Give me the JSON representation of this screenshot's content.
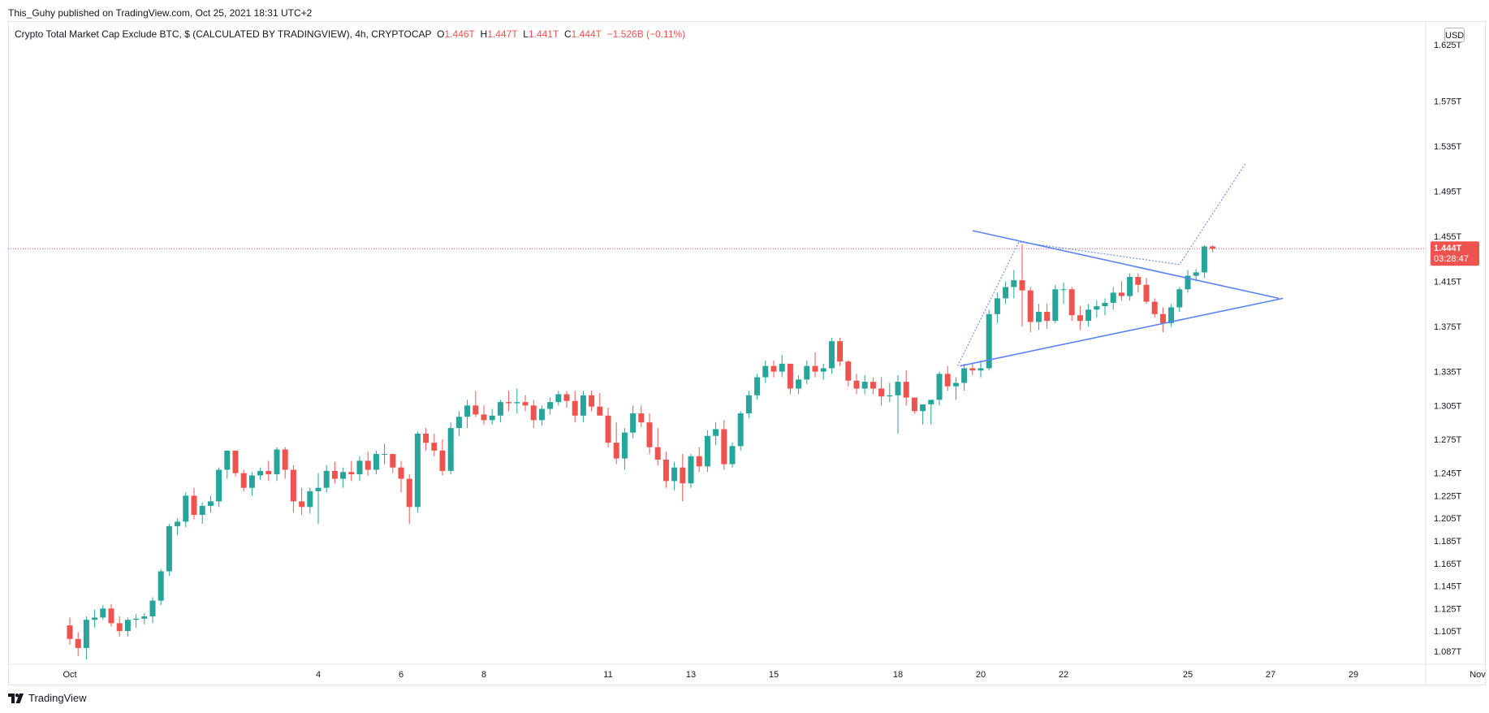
{
  "header": {
    "published_line": "This_Guhy published on TradingView.com, Oct 25, 2021 18:31 UTC+2"
  },
  "legend": {
    "title": "Crypto Total Market Cap Exclude BTC, $ (CALCULATED BY TRADINGVIEW), 4h, CRYPTOCAP",
    "o_label": "O",
    "o_value": "1.446T",
    "h_label": "H",
    "h_value": "1.447T",
    "l_label": "L",
    "l_value": "1.441T",
    "c_label": "C",
    "c_value": "1.444T",
    "change": "−1.526B (−0.11%)"
  },
  "currency_button": "USD",
  "price_label": {
    "value": "1.444T",
    "countdown": "03:28:47"
  },
  "footer": {
    "brand": "TradingView",
    "logo_icon": "tradingview-logo-icon"
  },
  "colors": {
    "up": "#26a69a",
    "down": "#ef5350",
    "trendline": "#5b82f0",
    "pricelabel": "#ef5350"
  },
  "chart_data": {
    "type": "candlestick",
    "title": "Crypto Total Market Cap Exclude BTC, $ (CALCULATED BY TRADINGVIEW), 4h, CRYPTOCAP",
    "ylim_trillions": [
      1.077,
      1.64
    ],
    "y_ticks": [
      "1.625T",
      "1.575T",
      "1.535T",
      "1.495T",
      "1.455T",
      "1.415T",
      "1.375T",
      "1.335T",
      "1.305T",
      "1.275T",
      "1.245T",
      "1.225T",
      "1.205T",
      "1.185T",
      "1.165T",
      "1.145T",
      "1.125T",
      "1.105T",
      "1.087T"
    ],
    "y_tick_values": [
      1.625,
      1.575,
      1.535,
      1.495,
      1.455,
      1.415,
      1.375,
      1.335,
      1.305,
      1.275,
      1.245,
      1.225,
      1.205,
      1.185,
      1.165,
      1.145,
      1.125,
      1.105,
      1.087
    ],
    "x_ticks": [
      "Oct",
      "4",
      "6",
      "8",
      "11",
      "13",
      "15",
      "18",
      "20",
      "22",
      "25",
      "27",
      "29",
      "Nov"
    ],
    "x_tick_bar_index": [
      0,
      30,
      40,
      50,
      65,
      75,
      85,
      100,
      110,
      120,
      135,
      145,
      155,
      170
    ],
    "bar_interval": "4h",
    "candles_ohlc_trillions": [
      [
        1.11,
        1.117,
        1.093,
        1.098
      ],
      [
        1.098,
        1.104,
        1.083,
        1.09
      ],
      [
        1.09,
        1.118,
        1.08,
        1.115
      ],
      [
        1.115,
        1.124,
        1.108,
        1.117
      ],
      [
        1.117,
        1.128,
        1.115,
        1.125
      ],
      [
        1.125,
        1.129,
        1.109,
        1.112
      ],
      [
        1.112,
        1.118,
        1.1,
        1.105
      ],
      [
        1.105,
        1.117,
        1.1,
        1.115
      ],
      [
        1.115,
        1.12,
        1.108,
        1.116
      ],
      [
        1.116,
        1.121,
        1.111,
        1.118
      ],
      [
        1.118,
        1.135,
        1.112,
        1.132
      ],
      [
        1.132,
        1.16,
        1.128,
        1.158
      ],
      [
        1.158,
        1.2,
        1.154,
        1.198
      ],
      [
        1.198,
        1.205,
        1.19,
        1.202
      ],
      [
        1.202,
        1.228,
        1.197,
        1.225
      ],
      [
        1.225,
        1.232,
        1.204,
        1.208
      ],
      [
        1.208,
        1.219,
        1.2,
        1.216
      ],
      [
        1.216,
        1.225,
        1.21,
        1.22
      ],
      [
        1.22,
        1.25,
        1.215,
        1.248
      ],
      [
        1.248,
        1.265,
        1.24,
        1.265
      ],
      [
        1.265,
        1.265,
        1.242,
        1.245
      ],
      [
        1.245,
        1.248,
        1.229,
        1.232
      ],
      [
        1.232,
        1.246,
        1.225,
        1.243
      ],
      [
        1.243,
        1.25,
        1.239,
        1.247
      ],
      [
        1.247,
        1.256,
        1.238,
        1.244
      ],
      [
        1.244,
        1.268,
        1.238,
        1.266
      ],
      [
        1.266,
        1.268,
        1.24,
        1.248
      ],
      [
        1.248,
        1.252,
        1.21,
        1.22
      ],
      [
        1.22,
        1.232,
        1.208,
        1.215
      ],
      [
        1.215,
        1.232,
        1.209,
        1.229
      ],
      [
        1.229,
        1.245,
        1.2,
        1.232
      ],
      [
        1.232,
        1.252,
        1.228,
        1.247
      ],
      [
        1.247,
        1.255,
        1.236,
        1.24
      ],
      [
        1.24,
        1.25,
        1.232,
        1.246
      ],
      [
        1.246,
        1.256,
        1.238,
        1.244
      ],
      [
        1.244,
        1.26,
        1.238,
        1.256
      ],
      [
        1.256,
        1.264,
        1.243,
        1.248
      ],
      [
        1.248,
        1.265,
        1.244,
        1.262
      ],
      [
        1.262,
        1.271,
        1.253,
        1.262
      ],
      [
        1.262,
        1.26,
        1.245,
        1.25
      ],
      [
        1.25,
        1.256,
        1.228,
        1.24
      ],
      [
        1.24,
        1.244,
        1.2,
        1.215
      ],
      [
        1.215,
        1.282,
        1.21,
        1.28
      ],
      [
        1.28,
        1.285,
        1.265,
        1.272
      ],
      [
        1.272,
        1.28,
        1.26,
        1.265
      ],
      [
        1.265,
        1.275,
        1.243,
        1.247
      ],
      [
        1.247,
        1.29,
        1.244,
        1.285
      ],
      [
        1.285,
        1.3,
        1.278,
        1.295
      ],
      [
        1.295,
        1.31,
        1.285,
        1.305
      ],
      [
        1.305,
        1.318,
        1.295,
        1.297
      ],
      [
        1.297,
        1.305,
        1.288,
        1.292
      ],
      [
        1.292,
        1.302,
        1.288,
        1.296
      ],
      [
        1.296,
        1.31,
        1.29,
        1.308
      ],
      [
        1.308,
        1.318,
        1.3,
        1.307
      ],
      [
        1.307,
        1.32,
        1.298,
        1.308
      ],
      [
        1.308,
        1.314,
        1.3,
        1.305
      ],
      [
        1.305,
        1.31,
        1.285,
        1.292
      ],
      [
        1.292,
        1.305,
        1.287,
        1.302
      ],
      [
        1.302,
        1.312,
        1.297,
        1.308
      ],
      [
        1.308,
        1.318,
        1.305,
        1.315
      ],
      [
        1.315,
        1.318,
        1.303,
        1.309
      ],
      [
        1.309,
        1.318,
        1.29,
        1.296
      ],
      [
        1.296,
        1.318,
        1.29,
        1.314
      ],
      [
        1.314,
        1.318,
        1.3,
        1.304
      ],
      [
        1.304,
        1.316,
        1.298,
        1.296
      ],
      [
        1.296,
        1.303,
        1.268,
        1.272
      ],
      [
        1.272,
        1.29,
        1.253,
        1.258
      ],
      [
        1.258,
        1.285,
        1.248,
        1.281
      ],
      [
        1.281,
        1.305,
        1.276,
        1.298
      ],
      [
        1.298,
        1.305,
        1.286,
        1.29
      ],
      [
        1.29,
        1.298,
        1.262,
        1.268
      ],
      [
        1.268,
        1.285,
        1.252,
        1.257
      ],
      [
        1.257,
        1.264,
        1.232,
        1.238
      ],
      [
        1.238,
        1.255,
        1.23,
        1.25
      ],
      [
        1.25,
        1.262,
        1.22,
        1.236
      ],
      [
        1.236,
        1.262,
        1.232,
        1.26
      ],
      [
        1.26,
        1.268,
        1.246,
        1.251
      ],
      [
        1.251,
        1.283,
        1.246,
        1.278
      ],
      [
        1.278,
        1.29,
        1.27,
        1.284
      ],
      [
        1.284,
        1.292,
        1.248,
        1.253
      ],
      [
        1.253,
        1.272,
        1.25,
        1.269
      ],
      [
        1.269,
        1.3,
        1.265,
        1.298
      ],
      [
        1.298,
        1.318,
        1.294,
        1.314
      ],
      [
        1.314,
        1.333,
        1.31,
        1.33
      ],
      [
        1.33,
        1.345,
        1.325,
        1.34
      ],
      [
        1.34,
        1.345,
        1.33,
        1.335
      ],
      [
        1.335,
        1.35,
        1.33,
        1.342
      ],
      [
        1.342,
        1.342,
        1.315,
        1.32
      ],
      [
        1.32,
        1.332,
        1.315,
        1.328
      ],
      [
        1.328,
        1.345,
        1.324,
        1.34
      ],
      [
        1.34,
        1.352,
        1.33,
        1.335
      ],
      [
        1.335,
        1.342,
        1.328,
        1.338
      ],
      [
        1.338,
        1.365,
        1.333,
        1.362
      ],
      [
        1.362,
        1.365,
        1.34,
        1.344
      ],
      [
        1.344,
        1.345,
        1.322,
        1.327
      ],
      [
        1.327,
        1.333,
        1.315,
        1.32
      ],
      [
        1.32,
        1.332,
        1.315,
        1.326
      ],
      [
        1.326,
        1.33,
        1.315,
        1.32
      ],
      [
        1.32,
        1.33,
        1.305,
        1.313
      ],
      [
        1.313,
        1.325,
        1.308,
        1.314
      ],
      [
        1.314,
        1.332,
        1.28,
        1.326
      ],
      [
        1.326,
        1.336,
        1.305,
        1.312
      ],
      [
        1.312,
        1.312,
        1.298,
        1.3
      ],
      [
        1.3,
        1.305,
        1.288,
        1.306
      ],
      [
        1.306,
        1.31,
        1.288,
        1.31
      ],
      [
        1.31,
        1.335,
        1.305,
        1.333
      ],
      [
        1.333,
        1.34,
        1.318,
        1.322
      ],
      [
        1.322,
        1.33,
        1.31,
        1.325
      ],
      [
        1.325,
        1.342,
        1.318,
        1.338
      ],
      [
        1.338,
        1.343,
        1.332,
        1.336
      ],
      [
        1.336,
        1.345,
        1.33,
        1.338
      ],
      [
        1.338,
        1.39,
        1.336,
        1.386
      ],
      [
        1.386,
        1.405,
        1.378,
        1.4
      ],
      [
        1.4,
        1.415,
        1.395,
        1.41
      ],
      [
        1.41,
        1.425,
        1.4,
        1.416
      ],
      [
        1.416,
        1.448,
        1.375,
        1.407
      ],
      [
        1.407,
        1.41,
        1.37,
        1.379
      ],
      [
        1.379,
        1.395,
        1.372,
        1.388
      ],
      [
        1.388,
        1.395,
        1.373,
        1.38
      ],
      [
        1.38,
        1.412,
        1.378,
        1.408
      ],
      [
        1.408,
        1.414,
        1.395,
        1.408
      ],
      [
        1.408,
        1.41,
        1.38,
        1.385
      ],
      [
        1.385,
        1.393,
        1.372,
        1.38
      ],
      [
        1.38,
        1.395,
        1.375,
        1.39
      ],
      [
        1.39,
        1.398,
        1.383,
        1.393
      ],
      [
        1.393,
        1.4,
        1.385,
        1.396
      ],
      [
        1.396,
        1.41,
        1.39,
        1.405
      ],
      [
        1.405,
        1.415,
        1.398,
        1.402
      ],
      [
        1.402,
        1.422,
        1.398,
        1.419
      ],
      [
        1.419,
        1.422,
        1.405,
        1.412
      ],
      [
        1.412,
        1.418,
        1.395,
        1.397
      ],
      [
        1.397,
        1.4,
        1.383,
        1.386
      ],
      [
        1.386,
        1.392,
        1.37,
        1.378
      ],
      [
        1.378,
        1.395,
        1.375,
        1.392
      ],
      [
        1.392,
        1.41,
        1.388,
        1.408
      ],
      [
        1.408,
        1.425,
        1.405,
        1.42
      ],
      [
        1.42,
        1.426,
        1.415,
        1.423
      ],
      [
        1.423,
        1.447,
        1.418,
        1.446
      ],
      [
        1.446,
        1.447,
        1.441,
        1.444
      ]
    ],
    "current_price_trillions": 1.444,
    "annotations": {
      "triangle": {
        "upper_line": [
          [
            109.0,
            1.46
          ],
          [
            146.0,
            1.4
          ]
        ],
        "lower_line": [
          [
            107.5,
            1.34
          ],
          [
            146.5,
            1.4
          ]
        ],
        "projection": [
          [
            107.2,
            1.34
          ],
          [
            114.6,
            1.45
          ],
          [
            134.0,
            1.43
          ],
          [
            142.0,
            1.52
          ]
        ]
      }
    }
  }
}
